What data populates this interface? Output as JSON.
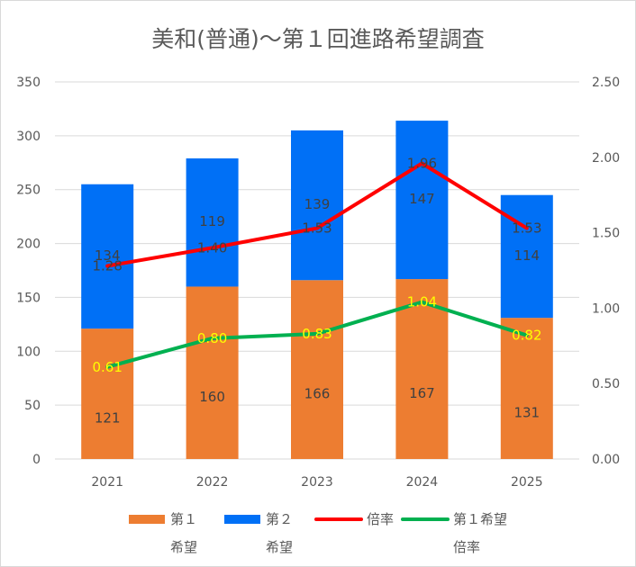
{
  "chart_data": {
    "type": "bar",
    "title": "美和(普通)～第１回進路希望調査",
    "categories": [
      "2021",
      "2022",
      "2023",
      "2024",
      "2025"
    ],
    "stacked": true,
    "series": [
      {
        "name": "第１希望",
        "kind": "bar",
        "axis": "left",
        "color": "#ed7d31",
        "values": [
          121,
          160,
          166,
          167,
          131
        ]
      },
      {
        "name": "第２希望",
        "kind": "bar",
        "axis": "left",
        "color": "#0070f6",
        "values": [
          134,
          119,
          139,
          147,
          114
        ]
      },
      {
        "name": "倍率",
        "kind": "line",
        "axis": "right",
        "color": "#ff0000",
        "values": [
          1.28,
          1.4,
          1.53,
          1.96,
          1.53
        ],
        "labels": [
          "1.28",
          "1.40",
          "1.53",
          "1.96",
          "1.53"
        ]
      },
      {
        "name": "第１希望倍率",
        "kind": "line",
        "axis": "right",
        "color": "#00b050",
        "values": [
          0.61,
          0.8,
          0.83,
          1.04,
          0.82
        ],
        "labels": [
          "0.61",
          "0.80",
          "0.83",
          "1.04",
          "0.82"
        ]
      }
    ],
    "y_left": {
      "ylim": [
        0,
        350
      ],
      "ticks": [
        "0",
        "50",
        "100",
        "150",
        "200",
        "250",
        "300",
        "350"
      ]
    },
    "y_right": {
      "ylim": [
        0,
        2.5
      ],
      "ticks": [
        "0.00",
        "0.50",
        "1.00",
        "1.50",
        "2.00",
        "2.50"
      ]
    },
    "grid": true,
    "legend_position": "bottom",
    "legend": [
      {
        "line1": "第１",
        "line2": "希望",
        "swatch": "box",
        "color": "#ed7d31"
      },
      {
        "line1": "第２",
        "line2": "希望",
        "swatch": "box",
        "color": "#0070f6"
      },
      {
        "line1": "倍率",
        "line2": "",
        "swatch": "line",
        "color": "#ff0000"
      },
      {
        "line1": "第１希望",
        "line2": "倍率",
        "swatch": "line",
        "color": "#00b050"
      }
    ]
  }
}
